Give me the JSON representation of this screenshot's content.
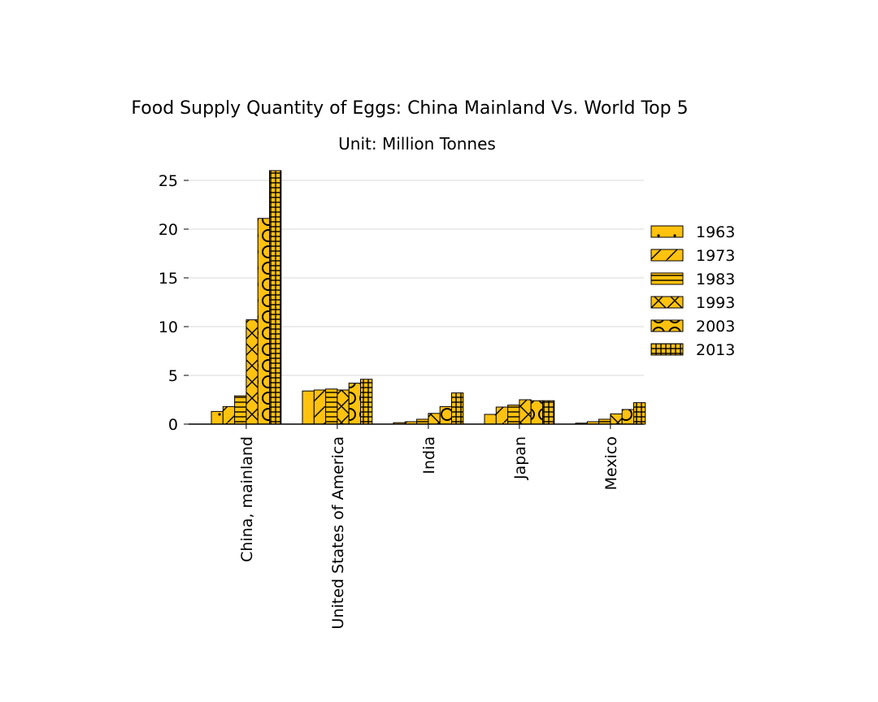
{
  "chart_data": {
    "type": "bar",
    "title": "Food Supply Quantity of Eggs: China Mainland Vs. World Top 5",
    "subtitle": "Unit: Million Tonnes",
    "xlabel": "",
    "ylabel": "",
    "ylim": [
      0,
      26
    ],
    "yticks": [
      "0",
      "5",
      "10",
      "15",
      "20",
      "25"
    ],
    "grid": "horizontal",
    "legend_position": "right",
    "bar_color": "#FFC20E",
    "edge_color": "#000000",
    "categories": [
      "China, mainland",
      "United States of America",
      "India",
      "Japan",
      "Mexico"
    ],
    "series": [
      {
        "name": "1963",
        "pattern": "dots",
        "values": [
          1.3,
          3.4,
          0.15,
          1.0,
          0.1
        ]
      },
      {
        "name": "1973",
        "pattern": "diagonal",
        "values": [
          1.8,
          3.5,
          0.25,
          1.75,
          0.25
        ]
      },
      {
        "name": "1983",
        "pattern": "horizontal",
        "values": [
          2.9,
          3.6,
          0.5,
          1.95,
          0.5
        ]
      },
      {
        "name": "1993",
        "pattern": "crosses",
        "values": [
          10.7,
          3.5,
          1.1,
          2.5,
          1.05
        ]
      },
      {
        "name": "2003",
        "pattern": "circles",
        "values": [
          21.1,
          4.2,
          1.8,
          2.4,
          1.5
        ]
      },
      {
        "name": "2013",
        "pattern": "grid",
        "values": [
          26.0,
          4.6,
          3.2,
          2.4,
          2.2
        ]
      }
    ]
  }
}
